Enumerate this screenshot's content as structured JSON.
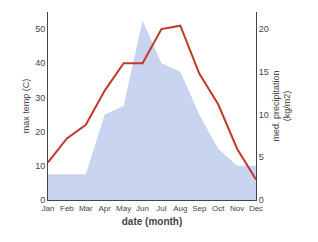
{
  "chart_data": {
    "type": "line",
    "categories": [
      "Jan",
      "Feb",
      "Mar",
      "Apr",
      "May",
      "Jun",
      "Jul",
      "Aug",
      "Sep",
      "Oct",
      "Nov",
      "Dec"
    ],
    "xlabel": "date (month)",
    "ylabel": "max temp (C)",
    "y2label": "med. precipitation\n(kg/m2)",
    "series": [
      {
        "type": "area",
        "axis": "y2",
        "color": "#c8d4f0",
        "values": [
          3,
          3,
          3,
          10,
          11,
          21,
          16,
          15,
          10,
          6,
          4,
          4
        ]
      },
      {
        "type": "line",
        "color": "#c0392b",
        "values": [
          11,
          18,
          22,
          32,
          40,
          40,
          50,
          51,
          37,
          28,
          15,
          6
        ]
      }
    ],
    "ylim": [
      0,
      55
    ],
    "yticks": [
      0,
      10,
      20,
      30,
      40,
      50
    ],
    "y2lim": [
      0,
      22
    ],
    "y2ticks": [
      0,
      5,
      10,
      15,
      20
    ],
    "grid": false
  }
}
